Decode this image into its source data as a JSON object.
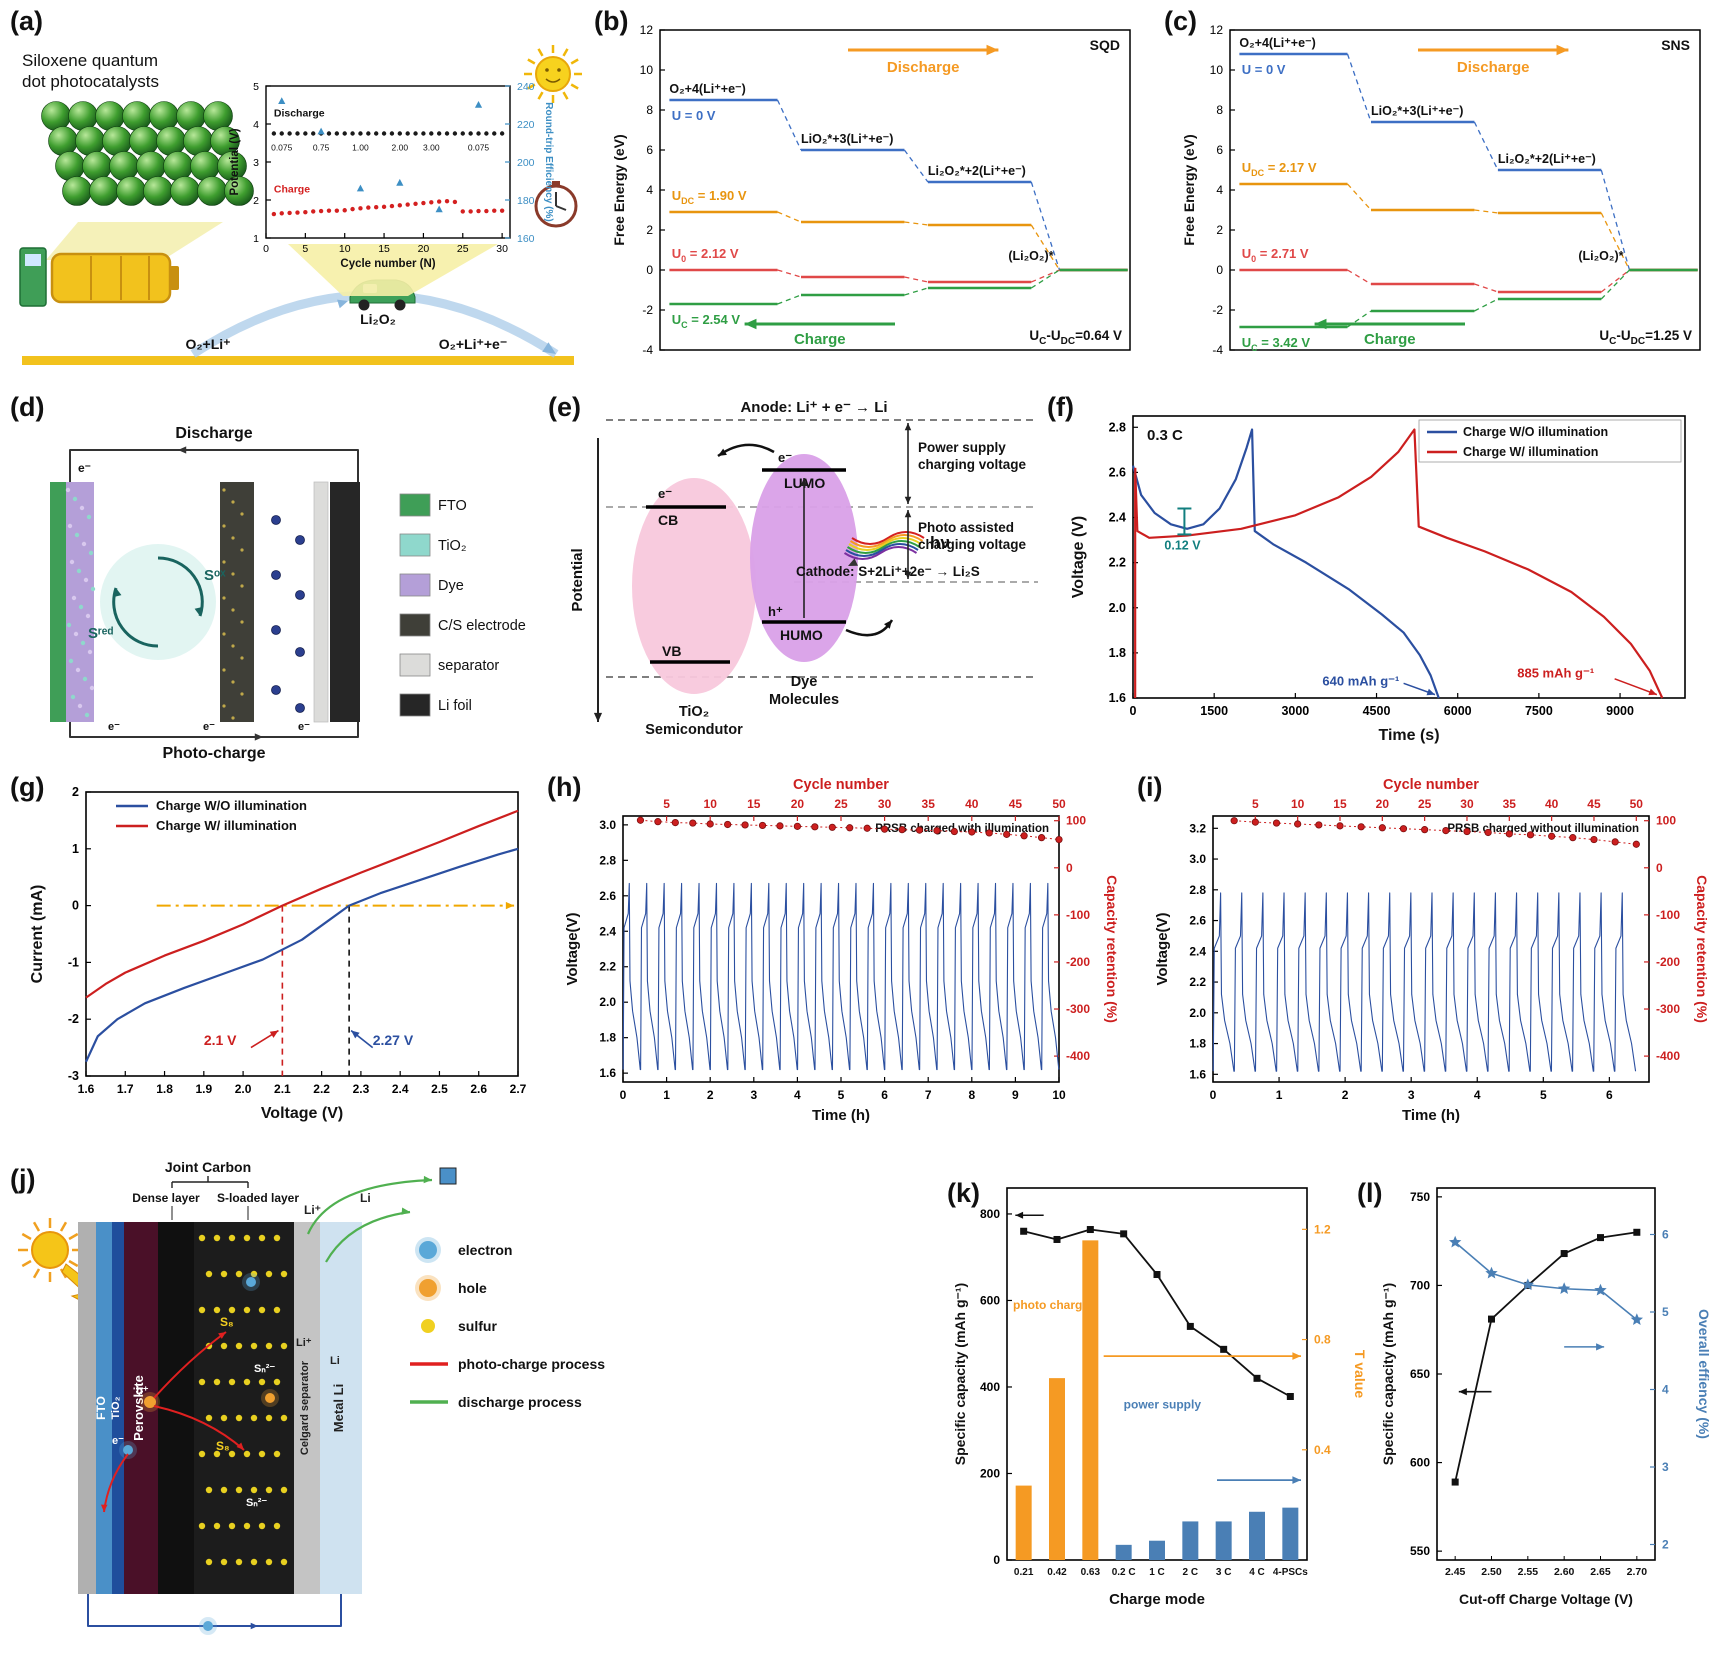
{
  "labels": {
    "a": "(a)",
    "b": "(b)",
    "c": "(c)",
    "d": "(d)",
    "e": "(e)",
    "f": "(f)",
    "g": "(g)",
    "h": "(h)",
    "i": "(i)",
    "j": "(j)",
    "k": "(k)",
    "l": "(l)"
  },
  "panel_a": {
    "title_1": "Siloxene quantum",
    "title_2": "dot photocatalysts",
    "reaction_left": "O₂+Li⁺",
    "product": "Li₂O₂",
    "reaction_right": "O₂+Li⁺+e⁻"
  },
  "panel_d": {
    "top_label": "Discharge",
    "bottom_label": "Photo-charge",
    "e_minus": "e⁻",
    "s_ox": "Sᵒˣ",
    "s_red": "Sʳᵉᵈ",
    "legend": [
      {
        "label": "FTO",
        "color": "#3f9e57"
      },
      {
        "label": "TiO₂",
        "color": "#8fd8cc"
      },
      {
        "label": "Dye",
        "color": "#b49fd8"
      },
      {
        "label": "C/S electrode",
        "color": "#3f3f38"
      },
      {
        "label": "separator",
        "color": "#dcdcda"
      },
      {
        "label": "Li foil",
        "color": "#262626"
      }
    ]
  },
  "panel_e": {
    "potential_axis": "Potential",
    "anode_text": "Anode: Li⁺ + e⁻ → Li",
    "power_supply_1": "Power supply",
    "power_supply_2": "charging voltage",
    "photo_1": "Photo assisted",
    "photo_2": "charging voltage",
    "cathode_text": "Cathode: S+2Li⁺+2e⁻ → Li₂S",
    "cb": "CB",
    "vb": "VB",
    "lumo": "LUMO",
    "humo": "HUMO",
    "e_minus": "e⁻",
    "h_plus": "h⁺",
    "hv": "hν",
    "tio2_1": "TiO₂",
    "tio2_2": "Semicondutor",
    "dye_1": "Dye",
    "dye_2": "Molecules"
  },
  "panel_j": {
    "joint_carbon": "Joint Carbon",
    "dense_layer": "Dense layer",
    "s_loaded": "S-loaded layer",
    "layers": [
      "FTO",
      "TiO₂",
      "Perovskite",
      "Celgard separator",
      "Metal Li"
    ],
    "ions": {
      "li_plus": "Li⁺",
      "li": "Li",
      "s8": "S₈",
      "sn": "Sₙ²⁻",
      "h_plus": "h⁺",
      "e_minus": "e⁻"
    },
    "legend": [
      {
        "label": "electron",
        "type": "dot",
        "color": "#5aa8d8"
      },
      {
        "label": "hole",
        "type": "dot",
        "color": "#f0a030"
      },
      {
        "label": "sulfur",
        "type": "dot",
        "color": "#f0d020"
      },
      {
        "label": "photo-charge process",
        "type": "line",
        "color": "#e02020"
      },
      {
        "label": "discharge process",
        "type": "line",
        "color": "#50b050"
      }
    ]
  },
  "chart_data": [
    {
      "panel": "a_inset",
      "type": "line",
      "xlabel": "Cycle number (N)",
      "xlim": [
        0,
        31
      ],
      "xticks": [
        0,
        5,
        10,
        15,
        20,
        25,
        30
      ],
      "ylabel": "Potential (V)",
      "ylim": [
        1,
        5
      ],
      "yticks": [
        1,
        2,
        3,
        4,
        5
      ],
      "y2label": "Round-trip Efficiency (%)",
      "y2lim": [
        160,
        240
      ],
      "y2ticks": [
        160,
        180,
        200,
        220,
        240
      ],
      "discharge_label": "Discharge",
      "charge_label": "Charge",
      "discharge_y": 3.75,
      "charge": [
        1.63,
        1.65,
        1.66,
        1.67,
        1.68,
        1.7,
        1.71,
        1.72,
        1.72,
        1.73,
        1.76,
        1.78,
        1.8,
        1.81,
        1.82,
        1.84,
        1.86,
        1.88,
        1.9,
        1.92,
        1.94,
        1.96,
        1.97,
        1.95,
        1.7,
        1.7,
        1.71,
        1.71,
        1.72,
        1.72
      ],
      "efficiency": {
        "x": [
          2,
          7,
          12,
          17,
          22,
          27
        ],
        "y": [
          232,
          216,
          186,
          189,
          175,
          230
        ]
      },
      "rate_labels": [
        {
          "x": 2,
          "text": "0.075"
        },
        {
          "x": 7,
          "text": "0.75"
        },
        {
          "x": 12,
          "text": "1.00"
        },
        {
          "x": 17,
          "text": "2.00"
        },
        {
          "x": 21,
          "text": "3.00"
        },
        {
          "x": 27,
          "text": "0.075"
        }
      ]
    },
    {
      "panel": "b",
      "type": "free_energy",
      "tag": "SQD",
      "ylabel": "Free Energy (eV)",
      "ylim": [
        -4,
        12
      ],
      "yticks": [
        -4,
        -2,
        0,
        2,
        4,
        6,
        8,
        10,
        12
      ],
      "step_labels": [
        "O₂+4(Li⁺+e⁻)",
        "LiO₂*+3(Li⁺+e⁻)",
        "Li₂O₂*+2(Li⁺+e⁻)",
        "(Li₂O₂)*"
      ],
      "lines": [
        {
          "segs": [
            {
              "t": "U = 0 V"
            }
          ],
          "color": "#3d6fc4",
          "levels": [
            8.5,
            6.0,
            4.4,
            0
          ],
          "pos": "below"
        },
        {
          "segs": [
            {
              "t": "U"
            },
            {
              "t": "DC",
              "s": 1
            },
            {
              "t": " = 1.90 V"
            }
          ],
          "color": "#e8950f",
          "levels": [
            2.9,
            2.4,
            2.25,
            0
          ],
          "pos": "above"
        },
        {
          "segs": [
            {
              "t": "U"
            },
            {
              "t": "0",
              "s": 1
            },
            {
              "t": " = 2.12 V"
            }
          ],
          "color": "#e04848",
          "levels": [
            0,
            -0.35,
            -0.6,
            0
          ],
          "pos": "above"
        },
        {
          "segs": [
            {
              "t": "U"
            },
            {
              "t": "C",
              "s": 1
            },
            {
              "t": " = 2.54 V"
            }
          ],
          "color": "#2f9e44",
          "levels": [
            -1.7,
            -1.25,
            -0.9,
            0
          ],
          "pos": "below"
        }
      ],
      "discharge": "Discharge",
      "charge": "Charge",
      "delta_segs": [
        {
          "t": "U"
        },
        {
          "t": "C",
          "s": 1
        },
        {
          "t": "-U"
        },
        {
          "t": "DC",
          "s": 1
        },
        {
          "t": "=0.64 V"
        }
      ]
    },
    {
      "panel": "c",
      "type": "free_energy",
      "tag": "SNS",
      "ylabel": "Free Energy (eV)",
      "ylim": [
        -4,
        12
      ],
      "yticks": [
        -4,
        -2,
        0,
        2,
        4,
        6,
        8,
        10,
        12
      ],
      "step_labels": [
        "O₂+4(Li⁺+e⁻)",
        "LiO₂*+3(Li⁺+e⁻)",
        "Li₂O₂*+2(Li⁺+e⁻)",
        "(Li₂O₂)*"
      ],
      "lines": [
        {
          "segs": [
            {
              "t": "U = 0 V"
            }
          ],
          "color": "#3d6fc4",
          "levels": [
            10.8,
            7.4,
            5.0,
            0
          ],
          "pos": "below"
        },
        {
          "segs": [
            {
              "t": "U"
            },
            {
              "t": "DC",
              "s": 1
            },
            {
              "t": " = 2.17 V"
            }
          ],
          "color": "#e8950f",
          "levels": [
            4.3,
            3.0,
            2.85,
            0
          ],
          "pos": "above"
        },
        {
          "segs": [
            {
              "t": "U"
            },
            {
              "t": "0",
              "s": 1
            },
            {
              "t": " = 2.71 V"
            }
          ],
          "color": "#e04848",
          "levels": [
            0,
            -0.7,
            -1.1,
            0
          ],
          "pos": "above"
        },
        {
          "segs": [
            {
              "t": "U"
            },
            {
              "t": "C",
              "s": 1
            },
            {
              "t": " = 3.42 V"
            }
          ],
          "color": "#2f9e44",
          "levels": [
            -2.85,
            -2.05,
            -1.45,
            0
          ],
          "pos": "below"
        }
      ],
      "discharge": "Discharge",
      "charge": "Charge",
      "delta_segs": [
        {
          "t": "U"
        },
        {
          "t": "C",
          "s": 1
        },
        {
          "t": "-U"
        },
        {
          "t": "DC",
          "s": 1
        },
        {
          "t": "=1.25 V"
        }
      ]
    },
    {
      "panel": "f",
      "type": "xy",
      "rate": "0.3 C",
      "xlabel": "Time (s)",
      "xlim": [
        0,
        10200
      ],
      "xticks": [
        0,
        1500,
        3000,
        4500,
        6000,
        7500,
        9000
      ],
      "ylabel": "Voltage (V)",
      "ylim": [
        1.6,
        2.85
      ],
      "yticks": [
        1.6,
        1.8,
        2.0,
        2.2,
        2.4,
        2.6,
        2.8
      ],
      "legend": [
        "Charge W/O illumination",
        "Charge W/ illumination"
      ],
      "colors": [
        "#2b4fa0",
        "#cc1f1f"
      ],
      "series_blue": [
        [
          0,
          2.63
        ],
        [
          150,
          2.5
        ],
        [
          400,
          2.42
        ],
        [
          700,
          2.37
        ],
        [
          1000,
          2.35
        ],
        [
          1300,
          2.37
        ],
        [
          1600,
          2.44
        ],
        [
          1900,
          2.57
        ],
        [
          2100,
          2.71
        ],
        [
          2200,
          2.79
        ],
        [
          2250,
          2.34
        ],
        [
          2600,
          2.28
        ],
        [
          3200,
          2.2
        ],
        [
          4000,
          2.08
        ],
        [
          4600,
          1.97
        ],
        [
          5000,
          1.89
        ],
        [
          5300,
          1.79
        ],
        [
          5500,
          1.7
        ],
        [
          5650,
          1.6
        ]
      ],
      "series_red": [
        [
          40,
          2.62
        ],
        [
          80,
          2.34
        ],
        [
          300,
          2.31
        ],
        [
          1000,
          2.32
        ],
        [
          2000,
          2.35
        ],
        [
          3000,
          2.41
        ],
        [
          3800,
          2.49
        ],
        [
          4400,
          2.58
        ],
        [
          4900,
          2.69
        ],
        [
          5200,
          2.79
        ],
        [
          5280,
          2.36
        ],
        [
          5800,
          2.31
        ],
        [
          6500,
          2.25
        ],
        [
          7300,
          2.17
        ],
        [
          8100,
          2.07
        ],
        [
          8700,
          1.96
        ],
        [
          9200,
          1.84
        ],
        [
          9550,
          1.72
        ],
        [
          9780,
          1.6
        ]
      ],
      "ann_012": "0.12 V",
      "ann_640": "640 mAh g⁻¹",
      "ann_885": "885 mAh g⁻¹"
    },
    {
      "panel": "g",
      "type": "xy",
      "xlabel": "Voltage (V)",
      "xlim": [
        1.6,
        2.7
      ],
      "xticks": [
        1.6,
        1.7,
        1.8,
        1.9,
        2.0,
        2.1,
        2.2,
        2.3,
        2.4,
        2.5,
        2.6,
        2.7
      ],
      "ylabel": "Current (mA)",
      "ylim": [
        -3,
        2
      ],
      "yticks": [
        -3,
        -2,
        -1,
        0,
        1,
        2
      ],
      "legend": [
        "Charge W/O illumination",
        "Charge W/ illumination"
      ],
      "colors": [
        "#2b4fa0",
        "#cc1f1f"
      ],
      "series_blue": [
        [
          1.6,
          -2.75
        ],
        [
          1.63,
          -2.3
        ],
        [
          1.68,
          -2.0
        ],
        [
          1.75,
          -1.72
        ],
        [
          1.85,
          -1.45
        ],
        [
          1.95,
          -1.2
        ],
        [
          2.05,
          -0.95
        ],
        [
          2.15,
          -0.6
        ],
        [
          2.22,
          -0.25
        ],
        [
          2.27,
          0
        ],
        [
          2.35,
          0.22
        ],
        [
          2.45,
          0.45
        ],
        [
          2.55,
          0.68
        ],
        [
          2.65,
          0.9
        ],
        [
          2.7,
          1.0
        ]
      ],
      "series_red": [
        [
          1.6,
          -1.62
        ],
        [
          1.65,
          -1.38
        ],
        [
          1.7,
          -1.18
        ],
        [
          1.8,
          -0.88
        ],
        [
          1.9,
          -0.62
        ],
        [
          2.0,
          -0.33
        ],
        [
          2.1,
          0
        ],
        [
          2.2,
          0.3
        ],
        [
          2.3,
          0.58
        ],
        [
          2.4,
          0.85
        ],
        [
          2.5,
          1.12
        ],
        [
          2.6,
          1.4
        ],
        [
          2.7,
          1.67
        ]
      ],
      "v1": "2.1 V",
      "v1x": 2.1,
      "v2": "2.27 V",
      "v2x": 2.27
    },
    {
      "panel": "h",
      "type": "cycling",
      "title": "PRSB charged with illumination",
      "xlabel": "Time (h)",
      "xlim": [
        0,
        10
      ],
      "xticks": [
        0,
        1,
        2,
        3,
        4,
        5,
        6,
        7,
        8,
        9,
        10
      ],
      "top_label": "Cycle number",
      "top_lim": [
        0,
        50
      ],
      "top_ticks": [
        5,
        10,
        15,
        20,
        25,
        30,
        35,
        40,
        45,
        50
      ],
      "ylabel": "Voltage(V)",
      "ylim": [
        1.55,
        3.05
      ],
      "yticks": [
        1.6,
        1.8,
        2.0,
        2.2,
        2.4,
        2.6,
        2.8,
        3.0
      ],
      "y2label": "Capacity retention (%)",
      "y2lim": [
        -455,
        110
      ],
      "y2ticks": [
        100,
        0,
        -100,
        -200,
        -300,
        -400
      ],
      "n_cycles": 25,
      "cycle_span": 10,
      "v_min": 1.62,
      "v_top": 2.67,
      "ret_step": 2,
      "retention": [
        101,
        98,
        96,
        95,
        93,
        92,
        91,
        90,
        89,
        88,
        87,
        86,
        85,
        84,
        82,
        81,
        80,
        79,
        77,
        76,
        74,
        71,
        68,
        64,
        60
      ]
    },
    {
      "panel": "i",
      "type": "cycling",
      "title": "PRSB charged without illumination",
      "xlabel": "Time (h)",
      "xlim": [
        0,
        6.6
      ],
      "xticks": [
        0,
        1,
        2,
        3,
        4,
        5,
        6
      ],
      "top_label": "Cycle number",
      "top_lim": [
        0,
        51.5
      ],
      "top_ticks": [
        5,
        10,
        15,
        20,
        25,
        30,
        35,
        40,
        45,
        50
      ],
      "ylabel": "Voltage(V)",
      "ylim": [
        1.55,
        3.28
      ],
      "yticks": [
        1.6,
        1.8,
        2.0,
        2.2,
        2.4,
        2.6,
        2.8,
        3.0,
        3.2
      ],
      "y2label": "Capacity retention (%)",
      "y2lim": [
        -455,
        110
      ],
      "y2ticks": [
        100,
        0,
        -100,
        -200,
        -300,
        -400
      ],
      "n_cycles": 20,
      "cycle_span": 6.4,
      "v_min": 1.62,
      "v_top": 2.78,
      "ret_step": 2.5,
      "retention": [
        100,
        97,
        95,
        93,
        91,
        89,
        87,
        85,
        83,
        81,
        79,
        77,
        75,
        72,
        70,
        67,
        64,
        60,
        55,
        50
      ]
    },
    {
      "panel": "k",
      "type": "bar_line",
      "xlabel": "Charge mode",
      "categories": [
        "0.21",
        "0.42",
        "0.63",
        "0.2 C",
        "1 C",
        "2 C",
        "3 C",
        "4 C",
        "4-PSCs"
      ],
      "ylabel": "Specific capacity (mAh g⁻¹)",
      "ylim": [
        0,
        860
      ],
      "yticks": [
        0,
        200,
        400,
        600,
        800
      ],
      "y2label": "T value",
      "y2lim": [
        0,
        1.35
      ],
      "y2ticks": [
        0.4,
        0.8,
        1.2
      ],
      "line_values": [
        760,
        741,
        764,
        754,
        660,
        540,
        487,
        420,
        378
      ],
      "bar_values": [
        0.27,
        0.66,
        1.16,
        0.055,
        0.07,
        0.14,
        0.14,
        0.175,
        0.19
      ],
      "bar_colors_split": 3,
      "orange": "#f59a23",
      "blue": "#4a7fb5",
      "photo_label": "photo charge",
      "power_label": "power supply"
    },
    {
      "panel": "l",
      "type": "dual_line",
      "xlabel": "Cut-off Charge Voltage (V)",
      "x": [
        2.45,
        2.5,
        2.55,
        2.6,
        2.65,
        2.7
      ],
      "xticks_fmt": [
        "2.45",
        "2.50",
        "2.55",
        "2.60",
        "2.65",
        "2.70"
      ],
      "ylabel": "Specific capacity (mAh g⁻¹)",
      "ylim": [
        545,
        755
      ],
      "yticks": [
        550,
        600,
        650,
        700,
        750
      ],
      "capacity": [
        589,
        681,
        700,
        718,
        727,
        730
      ],
      "y2label": "Overall effiency (%)",
      "y2lim": [
        1.8,
        6.6
      ],
      "y2ticks": [
        2,
        3,
        4,
        5,
        6
      ],
      "efficiency": [
        5.9,
        5.5,
        5.35,
        5.3,
        5.28,
        4.9
      ],
      "blue": "#4a7fb5"
    }
  ]
}
